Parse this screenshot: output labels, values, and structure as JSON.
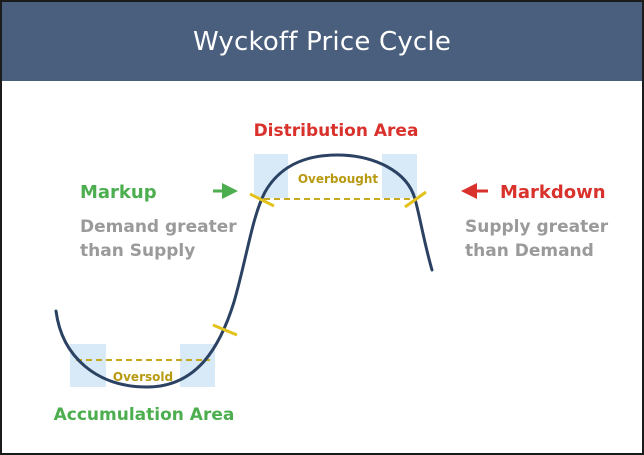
{
  "title": "Wyckoff Price Cycle",
  "labels": {
    "distribution": "Distribution Area",
    "accumulation": "Accumulation Area",
    "markup": "Markup",
    "markdown": "Markdown",
    "overbought": "Overbought",
    "oversold": "Oversold",
    "markup_desc_line1": "Demand greater",
    "markup_desc_line2": "than Supply",
    "markdown_desc_line1": "Supply greater",
    "markdown_desc_line2": "than Demand"
  },
  "colors": {
    "header_bg": "#4a5f7d",
    "curve": "#2b4263",
    "green": "#4cae4f",
    "red": "#d9312c",
    "gold": "#b89a10",
    "highlight": "#d8e9f8",
    "gray_text": "#9a9a9a"
  }
}
